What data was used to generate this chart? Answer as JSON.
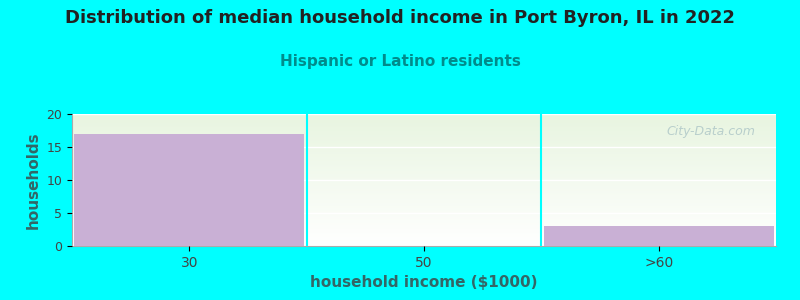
{
  "title": "Distribution of median household income in Port Byron, IL in 2022",
  "subtitle": "Hispanic or Latino residents",
  "xlabel": "household income ($1000)",
  "ylabel": "households",
  "categories": [
    "30",
    "50",
    ">60"
  ],
  "values": [
    17,
    0,
    3
  ],
  "bar_color": "#c9b0d5",
  "bar_width": 0.98,
  "ylim": [
    0,
    20
  ],
  "yticks": [
    0,
    5,
    10,
    15,
    20
  ],
  "background_color": "#00ffff",
  "plot_bg_color_top": "#e8f5e0",
  "plot_bg_color_bottom": "#ffffff",
  "title_fontsize": 13,
  "title_color": "#222222",
  "subtitle_color": "#008b8b",
  "subtitle_fontsize": 11,
  "axis_label_color": "#336666",
  "tick_color": "#444444",
  "watermark": "City-Data.com",
  "watermark_color": "#b0c8c8",
  "grid_color": "#ffffff",
  "spine_color": "#aaaaaa"
}
